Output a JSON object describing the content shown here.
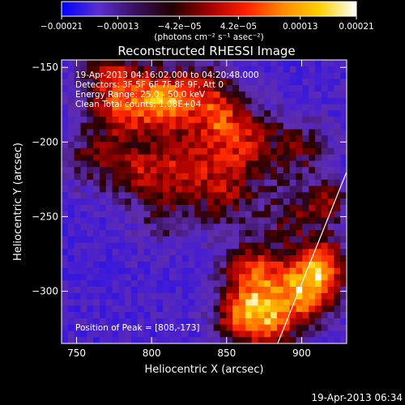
{
  "chart_data": {
    "type": "heatmap",
    "title": "Reconstructed RHESSI Image",
    "xlabel": "Heliocentric X (arcsec)",
    "ylabel": "Heliocentric Y (arcsec)",
    "xlim": [
      740,
      930
    ],
    "ylim": [
      -335,
      -145
    ],
    "x_ticks": [
      750,
      800,
      850,
      900
    ],
    "x_tick_labels": [
      "750",
      "800",
      "850",
      "900"
    ],
    "y_ticks": [
      -150,
      -200,
      -250,
      -300
    ],
    "y_tick_labels": [
      "−150",
      "−200",
      "−250",
      "−300"
    ],
    "colorbar": {
      "range": [
        -0.00021,
        0.00021
      ],
      "tick_values": [
        -0.00021,
        -0.00013,
        -4.2e-05,
        4.2e-05,
        0.00013,
        0.00021
      ],
      "tick_labels": [
        "−0.00021",
        "−0.00013",
        "−4.2e−05",
        "4.2e−05",
        "0.00013",
        "0.00021"
      ],
      "unit_label": "(photons cm⁻² s⁻¹ asec⁻²)",
      "colors": [
        "#0000ff",
        "#5a2fd0",
        "#3a1060",
        "#200000",
        "#a00000",
        "#ff2000",
        "#ff8800",
        "#ffd000",
        "#ffffff"
      ]
    },
    "annotations": [
      "19-Apr-2013 04:16:02.000 to 04:20:48.000",
      "Detectors: 3F 5F 6F 7F 8F 9F, Att 0",
      "Energy Range: 25.0 - 50.0 keV",
      "Clean    Total counts: 1.08E+04"
    ],
    "peak_label": "Position of Peak = [808,-173]",
    "peak": [
      808,
      -173
    ],
    "limb_line": [
      [
        884,
        -335
      ],
      [
        930,
        -220
      ]
    ]
  },
  "footer": {
    "date": "19-Apr-2013 06:34"
  }
}
